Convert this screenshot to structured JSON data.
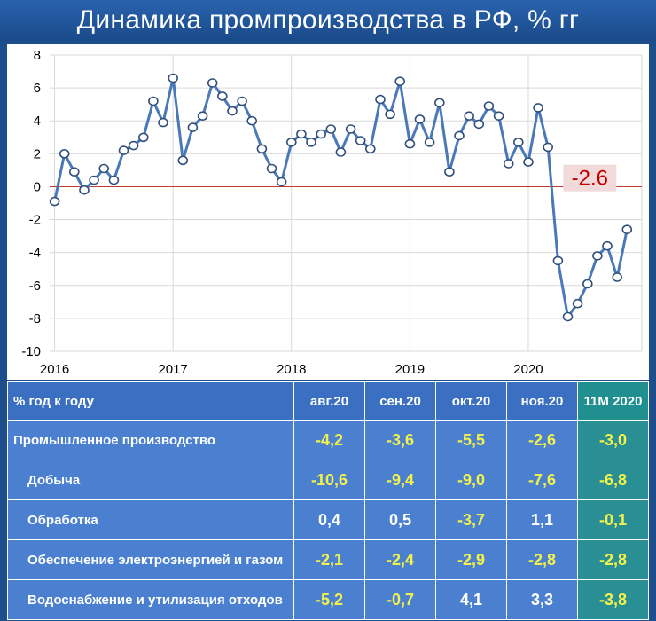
{
  "title": "Динамика промпроизводства в РФ, % гг",
  "chart_data": {
    "type": "line",
    "title": "Динамика промпроизводства в РФ, % гг",
    "xlabel": "",
    "ylabel": "",
    "ylim": [
      -10,
      8
    ],
    "yticks": [
      8,
      6,
      4,
      2,
      0,
      -2,
      -4,
      -6,
      -8,
      -10
    ],
    "x_tick_labels": [
      "2016",
      "2017",
      "2018",
      "2019",
      "2020"
    ],
    "x_start_month": "2016-01",
    "grid": true,
    "series": [
      {
        "color": "#4a78b8",
        "values": [
          -0.9,
          2.0,
          0.9,
          -0.2,
          0.4,
          1.1,
          0.4,
          2.2,
          2.5,
          3.0,
          5.2,
          3.9,
          6.6,
          1.6,
          3.6,
          4.3,
          6.3,
          5.5,
          4.6,
          5.2,
          4.0,
          2.3,
          1.1,
          0.3,
          2.7,
          3.2,
          2.7,
          3.2,
          3.5,
          2.1,
          3.5,
          2.8,
          2.3,
          5.3,
          4.4,
          6.4,
          2.6,
          4.1,
          2.7,
          5.1,
          0.9,
          3.1,
          4.3,
          3.8,
          4.9,
          4.3,
          1.4,
          2.7,
          1.5,
          4.8,
          2.4,
          -4.5,
          -7.9,
          -7.1,
          -5.9,
          -4.2,
          -3.6,
          -5.5,
          -2.6
        ]
      }
    ],
    "annotation": "-2.6",
    "zero_line_color": "#c0392b"
  },
  "table": {
    "headers": [
      "% год к году",
      "авг.20",
      "сен.20",
      "окт.20",
      "ноя.20",
      "11M 2020"
    ],
    "rows": [
      {
        "label": "Промышленное производство",
        "values": [
          "-4,2",
          "-3,6",
          "-5,5",
          "-2,6",
          "-3,0"
        ]
      },
      {
        "label": "Добыча",
        "values": [
          "-10,6",
          "-9,4",
          "-9,0",
          "-7,6",
          "-6,8"
        ]
      },
      {
        "label": "Обработка",
        "values": [
          "0,4",
          "0,5",
          "-3,7",
          "1,1",
          "-0,1"
        ]
      },
      {
        "label": "Обеспечение электроэнергией и газом",
        "values": [
          "-2,1",
          "-2,4",
          "-2,9",
          "-2,8",
          "-2,8"
        ]
      },
      {
        "label": "Водоснабжение и утилизация отходов",
        "values": [
          "-5,2",
          "-0,7",
          "4,1",
          "3,3",
          "-3,8"
        ]
      }
    ]
  }
}
